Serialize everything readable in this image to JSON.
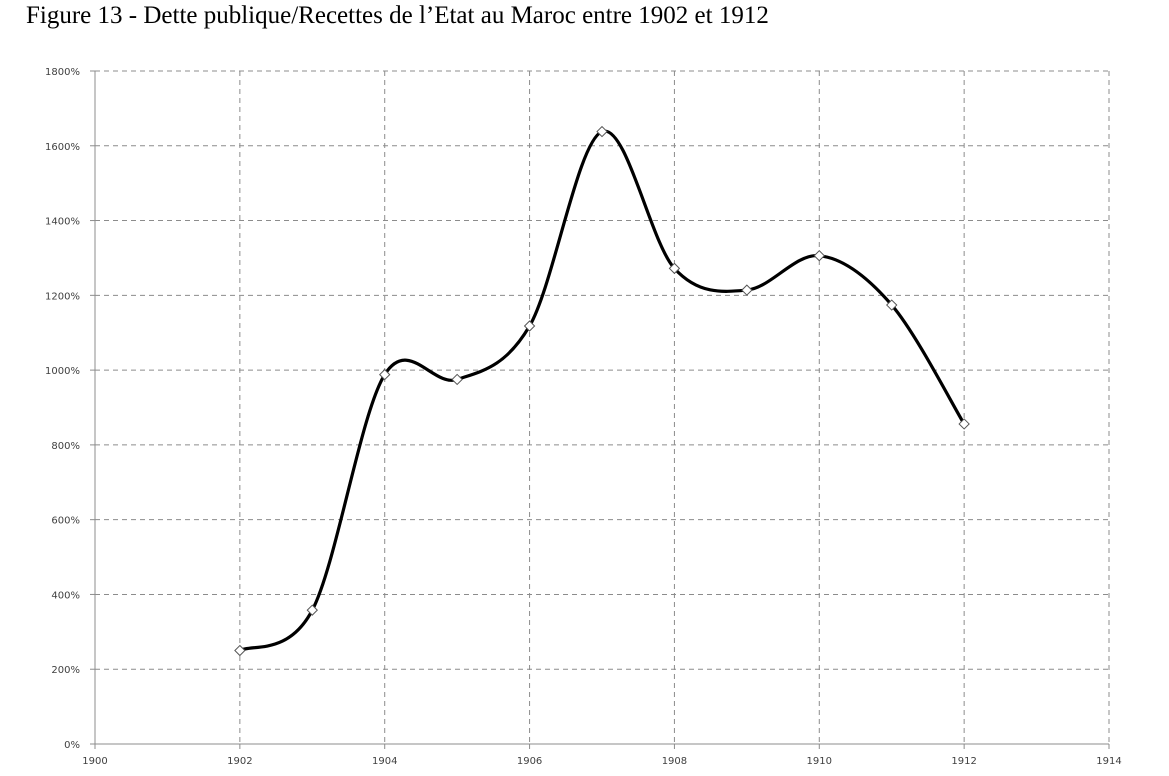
{
  "title": "Figure 13 - Dette publique/Recettes de l’Etat au Maroc entre 1902 et 1912",
  "chart_data": {
    "type": "line",
    "title": "Figure 13 - Dette publique/Recettes de l’Etat au Maroc entre 1902 et 1912",
    "xlabel": "",
    "ylabel": "",
    "x": [
      1902,
      1903,
      1904,
      1905,
      1906,
      1907,
      1908,
      1909,
      1910,
      1911,
      1912
    ],
    "series": [
      {
        "name": "Dette publique/Recettes",
        "values": [
          250,
          358,
          988,
          975,
          1118,
          1638,
          1272,
          1214,
          1306,
          1174,
          856
        ],
        "unit": "%",
        "style": "smoothed line, black, diamond markers"
      }
    ],
    "xlim": [
      1900,
      1914
    ],
    "ylim": [
      0,
      1800
    ],
    "x_ticks": [
      "1900",
      "1902",
      "1904",
      "1906",
      "1908",
      "1910",
      "1912",
      "1914"
    ],
    "y_ticks": [
      "0%",
      "200%",
      "400%",
      "600%",
      "800%",
      "1000%",
      "1200%",
      "1400%",
      "1600%",
      "1800%"
    ],
    "grid": true,
    "grid_style": "dashed",
    "legend": "none"
  }
}
